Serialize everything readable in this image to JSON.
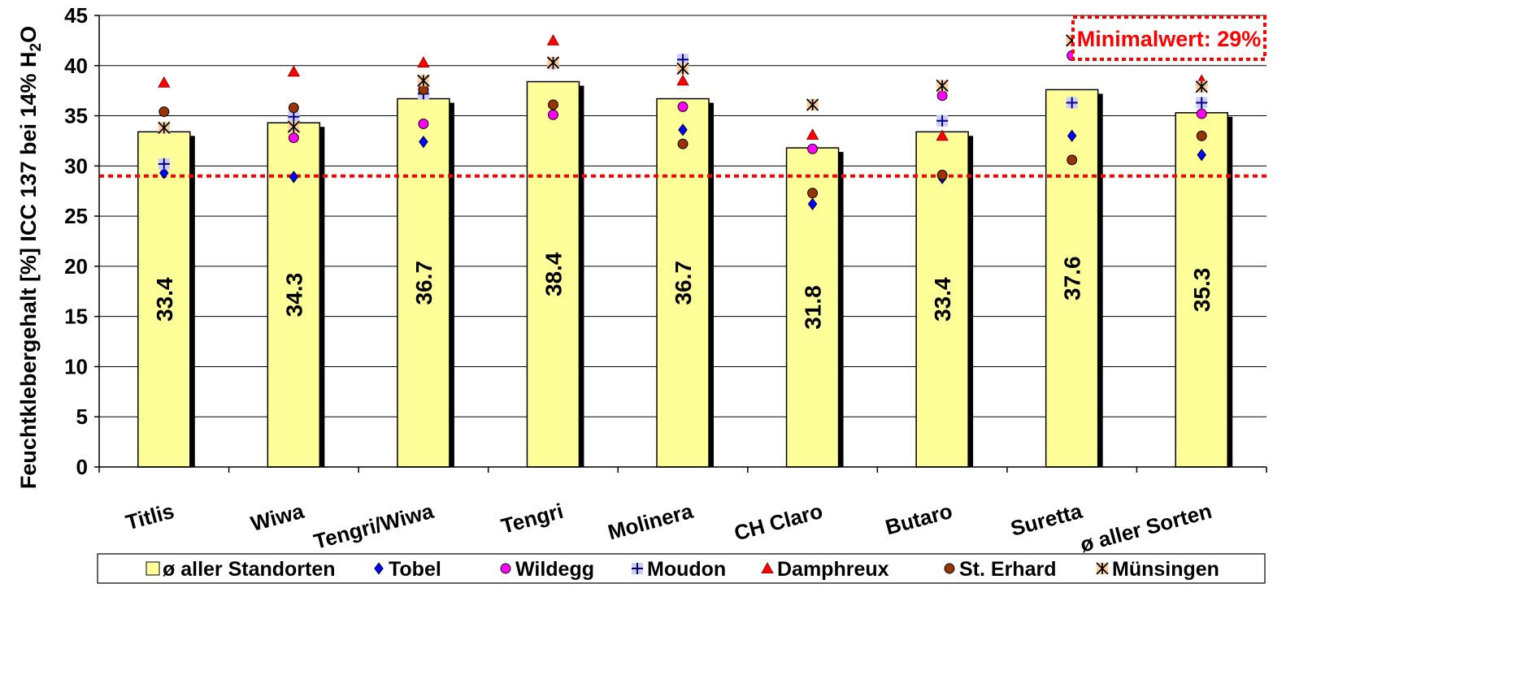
{
  "chart_data": {
    "type": "bar",
    "categories": [
      "Titlis",
      "Wiwa",
      "Tengri/Wiwa",
      "Tengri",
      "Molinera",
      "CH Claro",
      "Butaro",
      "Suretta",
      "ø aller Sorten"
    ],
    "ylabel_main": "Feuchtklebergehalt [%] ICC 137 bei 14% H",
    "ylabel_sub": "2",
    "ylabel_end": "O",
    "ylim": [
      0,
      45
    ],
    "yticks": [
      0,
      5,
      10,
      15,
      20,
      25,
      30,
      35,
      40,
      45
    ],
    "grid": true,
    "bar_series": {
      "name": "ø aller Standorten",
      "values": [
        33.4,
        34.3,
        36.7,
        38.4,
        36.7,
        31.8,
        33.4,
        37.6,
        35.3
      ],
      "labels": [
        "33.4",
        "34.3",
        "36.7",
        "38.4",
        "36.7",
        "31.8",
        "33.4",
        "37.6",
        "35.3"
      ],
      "color": "#ffff99"
    },
    "point_series": [
      {
        "name": "Tobel",
        "marker": "diamond",
        "color": "#0000ff",
        "values": [
          29.3,
          28.9,
          32.4,
          null,
          33.6,
          26.2,
          28.8,
          33.0,
          31.1
        ]
      },
      {
        "name": "Wildegg",
        "marker": "circle",
        "color": "#ff00ff",
        "values": [
          null,
          32.8,
          34.2,
          35.1,
          35.9,
          31.7,
          37.0,
          41.0,
          35.2
        ]
      },
      {
        "name": "Moudon",
        "marker": "plus",
        "color": "#000080",
        "values": [
          30.2,
          34.9,
          37.2,
          40.2,
          40.6,
          null,
          34.5,
          36.3,
          36.3
        ]
      },
      {
        "name": "Damphreux",
        "marker": "triangle",
        "color": "#ff0000",
        "values": [
          38.3,
          39.4,
          40.3,
          42.5,
          38.5,
          33.1,
          33.0,
          null,
          38.5
        ]
      },
      {
        "name": "St. Erhard",
        "marker": "circle",
        "color": "#993300",
        "values": [
          35.4,
          35.8,
          37.6,
          36.1,
          32.2,
          27.3,
          29.1,
          30.6,
          33.0
        ]
      },
      {
        "name": "Münsingen",
        "marker": "asterisk",
        "color": "#000000",
        "values": [
          33.8,
          33.9,
          38.5,
          40.3,
          39.7,
          36.1,
          38.0,
          42.5,
          37.9
        ]
      }
    ],
    "threshold": {
      "value": 29,
      "color": "#ff0000",
      "label": "Minimalwert: 29%"
    },
    "legend_placement": "bottom"
  }
}
